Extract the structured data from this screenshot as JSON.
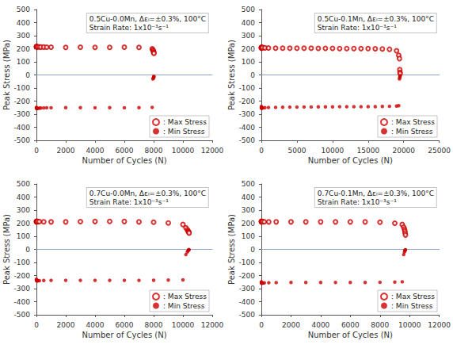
{
  "chart_data": [
    {
      "type": "scatter",
      "title": "0.5Cu-0.0Mn, Δεₗ=±0.3%, 100°C",
      "subtitle": "Strain Rate: 1x10⁻³s⁻¹",
      "xlabel": "Number of Cycles (N)",
      "ylabel": "Peak Stress (MPa)",
      "xlim": [
        0,
        12000
      ],
      "xticks": [
        0,
        2000,
        4000,
        6000,
        8000,
        10000,
        12000
      ],
      "ylim": [
        -500,
        500
      ],
      "yticks": [
        -500,
        -400,
        -300,
        -200,
        -100,
        0,
        100,
        200,
        300,
        400,
        500
      ],
      "grid": false,
      "legend": "lower right",
      "series": [
        {
          "name": ": Max Stress",
          "color": "#cc0000",
          "marker": "open circle",
          "x": [
            1,
            5,
            10,
            20,
            50,
            100,
            200,
            300,
            500,
            700,
            1000,
            2000,
            3000,
            4000,
            5000,
            6000,
            7000,
            7900,
            7950,
            7980,
            8000,
            8010,
            8020
          ],
          "values": [
            215,
            216,
            217,
            216,
            215,
            215,
            214,
            213,
            213,
            212,
            212,
            211,
            212,
            211,
            211,
            212,
            211,
            200,
            190,
            185,
            175,
            170,
            165
          ]
        },
        {
          "name": ": Min Stress",
          "color": "#cc0000",
          "marker": "circle",
          "x": [
            1,
            5,
            10,
            20,
            50,
            100,
            200,
            300,
            500,
            700,
            1000,
            2000,
            3000,
            4000,
            5000,
            6000,
            7000,
            7900,
            7950,
            7980,
            8000,
            8010,
            8020
          ],
          "values": [
            -248,
            -252,
            -255,
            -256,
            -257,
            -255,
            -254,
            -253,
            -252,
            -251,
            -251,
            -250,
            -250,
            -251,
            -250,
            -251,
            -250,
            -248,
            -30,
            -25,
            -20,
            -15,
            -10
          ]
        }
      ]
    },
    {
      "type": "scatter",
      "title": "0.5Cu-0.1Mn, Δεₗ=±0.3%, 100°C",
      "subtitle": "Strain Rate: 1x10⁻³s⁻¹",
      "xlabel": "Number of Cycles (N)",
      "ylabel": "Peak Stress (MPa)",
      "xlim": [
        0,
        25000
      ],
      "xticks": [
        0,
        5000,
        10000,
        15000,
        20000,
        25000
      ],
      "ylim": [
        -500,
        500
      ],
      "yticks": [
        -500,
        -400,
        -300,
        -200,
        -100,
        0,
        100,
        200,
        300,
        400,
        500
      ],
      "grid": false,
      "legend": "lower right",
      "series": [
        {
          "name": ": Max Stress",
          "color": "#cc0000",
          "marker": "open circle",
          "x": [
            1,
            5,
            10,
            20,
            50,
            100,
            200,
            500,
            1000,
            2000,
            3000,
            4000,
            5000,
            6000,
            7000,
            8000,
            9000,
            10000,
            11000,
            12000,
            13000,
            14000,
            15000,
            16000,
            17000,
            18000,
            19000,
            19300,
            19400,
            19450,
            19480,
            19500
          ],
          "values": [
            205,
            208,
            210,
            210,
            211,
            210,
            209,
            207,
            206,
            205,
            205,
            204,
            204,
            204,
            204,
            203,
            203,
            203,
            202,
            202,
            202,
            201,
            201,
            200,
            199,
            196,
            185,
            150,
            125,
            40,
            20,
            10
          ]
        },
        {
          "name": ": Min Stress",
          "color": "#cc0000",
          "marker": "circle",
          "x": [
            1,
            5,
            10,
            20,
            50,
            100,
            200,
            500,
            1000,
            2000,
            3000,
            4000,
            5000,
            6000,
            7000,
            8000,
            9000,
            10000,
            11000,
            12000,
            13000,
            14000,
            15000,
            16000,
            17000,
            18000,
            19000,
            19300,
            19400,
            19450,
            19480,
            19500
          ],
          "values": [
            -240,
            -248,
            -252,
            -253,
            -254,
            -253,
            -252,
            -250,
            -249,
            -248,
            -247,
            -246,
            -246,
            -245,
            -245,
            -244,
            -244,
            -244,
            -243,
            -243,
            -243,
            -243,
            -242,
            -242,
            -241,
            -240,
            -238,
            -235,
            -30,
            -20,
            -10,
            -5
          ]
        }
      ]
    },
    {
      "type": "scatter",
      "title": "0.7Cu-0.0Mn, Δεₗ=±0.3%, 100°C",
      "subtitle": "Strain Rate: 1x10⁻³s⁻¹",
      "xlabel": "Number of Cycles (N)",
      "ylabel": "Peak Stress (MPa)",
      "xlim": [
        0,
        12000
      ],
      "xticks": [
        0,
        2000,
        4000,
        6000,
        8000,
        10000,
        12000
      ],
      "ylim": [
        -500,
        500
      ],
      "yticks": [
        -500,
        -400,
        -300,
        -200,
        -100,
        0,
        100,
        200,
        300,
        400,
        500
      ],
      "grid": false,
      "legend": "lower right",
      "series": [
        {
          "name": ": Max Stress",
          "color": "#cc0000",
          "marker": "open circle",
          "x": [
            1,
            5,
            10,
            20,
            50,
            100,
            200,
            500,
            1000,
            2000,
            3000,
            4000,
            5000,
            6000,
            7000,
            8000,
            9000,
            10000,
            10200,
            10300,
            10350,
            10380,
            10400,
            10420
          ],
          "values": [
            210,
            213,
            215,
            214,
            213,
            213,
            212,
            211,
            210,
            210,
            212,
            213,
            214,
            213,
            210,
            208,
            202,
            190,
            165,
            150,
            140,
            135,
            130,
            125
          ]
        },
        {
          "name": ": Min Stress",
          "color": "#cc0000",
          "marker": "circle",
          "x": [
            1,
            5,
            10,
            20,
            50,
            100,
            200,
            500,
            1000,
            2000,
            3000,
            4000,
            5000,
            6000,
            7000,
            8000,
            9000,
            10000,
            10200,
            10300,
            10350,
            10380,
            10400,
            10420
          ],
          "values": [
            -228,
            -235,
            -238,
            -240,
            -241,
            -240,
            -239,
            -238,
            -237,
            -237,
            -237,
            -237,
            -237,
            -237,
            -237,
            -236,
            -235,
            -233,
            -40,
            -20,
            -10,
            -5,
            -3,
            -2
          ]
        }
      ]
    },
    {
      "type": "scatter",
      "title": "0.7Cu-0.1Mn, Δεₗ=±0.3%, 100°C",
      "subtitle": "Strain Rate: 1x10⁻³s⁻¹",
      "xlabel": "Number of Cycles (N)",
      "ylabel": "Peak Stress (MPa)",
      "xlim": [
        0,
        12000
      ],
      "xticks": [
        0,
        2000,
        4000,
        6000,
        8000,
        10000,
        12000
      ],
      "ylim": [
        -500,
        500
      ],
      "yticks": [
        -500,
        -400,
        -300,
        -200,
        -100,
        0,
        100,
        200,
        300,
        400,
        500
      ],
      "grid": false,
      "legend": "lower right",
      "series": [
        {
          "name": ": Max Stress",
          "color": "#cc0000",
          "marker": "open circle",
          "x": [
            1,
            5,
            10,
            20,
            50,
            100,
            200,
            500,
            1000,
            2000,
            3000,
            4000,
            5000,
            6000,
            7000,
            8000,
            9000,
            9500,
            9600,
            9650,
            9680,
            9700,
            9720
          ],
          "values": [
            210,
            213,
            215,
            214,
            213,
            212,
            211,
            210,
            210,
            210,
            210,
            210,
            210,
            210,
            210,
            208,
            200,
            190,
            170,
            155,
            140,
            125,
            110
          ]
        },
        {
          "name": ": Min Stress",
          "color": "#cc0000",
          "marker": "circle",
          "x": [
            1,
            5,
            10,
            20,
            50,
            100,
            200,
            500,
            1000,
            2000,
            3000,
            4000,
            5000,
            6000,
            7000,
            8000,
            9000,
            9500,
            9600,
            9650,
            9680,
            9700,
            9720
          ],
          "values": [
            -248,
            -255,
            -258,
            -258,
            -258,
            -257,
            -256,
            -255,
            -254,
            -253,
            -253,
            -253,
            -253,
            -253,
            -253,
            -252,
            -250,
            -248,
            -40,
            -20,
            -10,
            -5,
            -3
          ]
        }
      ]
    }
  ]
}
